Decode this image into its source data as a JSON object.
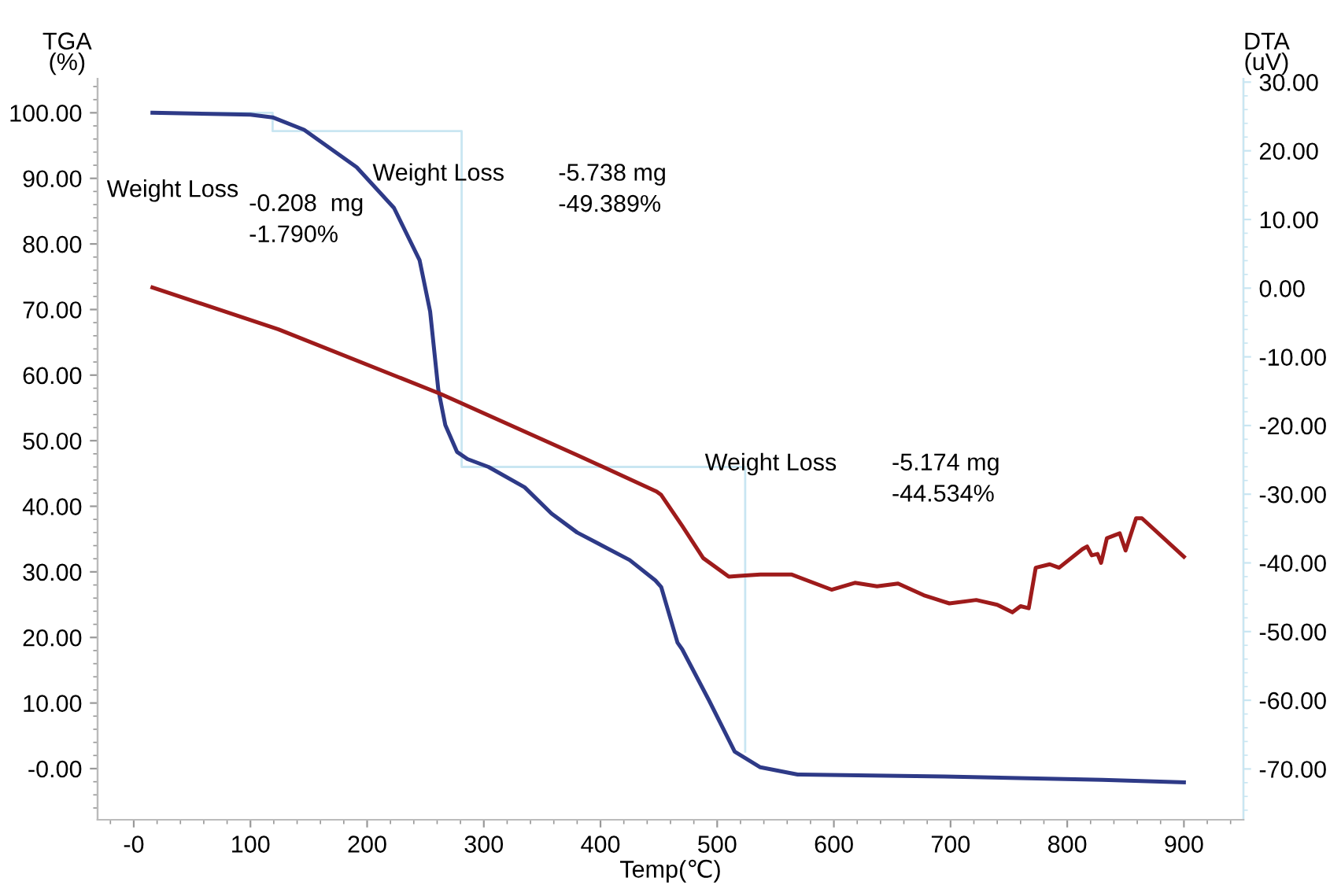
{
  "chart_data": {
    "type": "line",
    "xlabel": "Temp(℃)",
    "ylabel": "TGA\n(%)",
    "y2label": "DTA\n(uV)",
    "xlim": [
      -31,
      951
    ],
    "xticks": [
      {
        "value": 0,
        "label": "-0"
      },
      100,
      200,
      300,
      400,
      500,
      600,
      700,
      800,
      900
    ],
    "ylim": [
      -7.8,
      105.2
    ],
    "yticks": [
      {
        "value": 0,
        "label": "-0.00"
      },
      {
        "value": 10,
        "label": "10.00"
      },
      {
        "value": 20,
        "label": "20.00"
      },
      {
        "value": 30,
        "label": "30.00"
      },
      {
        "value": 40,
        "label": "40.00"
      },
      {
        "value": 50,
        "label": "50.00"
      },
      {
        "value": 60,
        "label": "60.00"
      },
      {
        "value": 70,
        "label": "70.00"
      },
      {
        "value": 80,
        "label": "80.00"
      },
      {
        "value": 90,
        "label": "90.00"
      },
      {
        "value": 100,
        "label": "100.00"
      }
    ],
    "y2lim": [
      -77.4,
      30.5
    ],
    "y2ticks": [
      {
        "value": -70,
        "label": "-70.00"
      },
      {
        "value": -60,
        "label": "-60.00"
      },
      {
        "value": -50,
        "label": "-50.00"
      },
      {
        "value": -40,
        "label": "-40.00"
      },
      {
        "value": -30,
        "label": "-30.00"
      },
      {
        "value": -20,
        "label": "-20.00"
      },
      {
        "value": -10,
        "label": "-10.00"
      },
      {
        "value": 0,
        "label": "0.00"
      },
      {
        "value": 10,
        "label": "10.00"
      },
      {
        "value": 20,
        "label": "20.00"
      },
      {
        "value": 30,
        "label": "30.00"
      }
    ],
    "grid": false,
    "legend": false,
    "marker": "none",
    "line_style": "solid",
    "series": [
      {
        "color": "#c9e6f2",
        "x": [
          16,
          119,
          119,
          281,
          281,
          524,
          524
        ],
        "values": [
          100,
          100,
          97.2,
          97.2,
          46,
          46,
          2.6
        ]
      },
      {
        "color": "#2e3a87",
        "x": [
          16,
          100,
          119,
          146,
          191,
          223,
          245,
          254,
          261,
          267,
          277,
          286,
          304,
          335,
          358,
          380,
          425,
          447,
          452,
          466,
          470,
          493,
          515,
          537,
          569,
          695,
          830,
          900
        ],
        "values": [
          100,
          99.7,
          99.3,
          97.4,
          91.7,
          85.5,
          77.5,
          69.7,
          57.8,
          52.4,
          48.3,
          47.2,
          46,
          42.9,
          38.9,
          36,
          31.8,
          28.7,
          27.7,
          19.2,
          18.2,
          10.4,
          2.6,
          0.2,
          -0.9,
          -1.2,
          -1.7,
          -2.1
        ]
      },
      {
        "color": "#9e1b1b",
        "axis": "y2",
        "x": [
          16,
          124,
          263,
          380,
          448,
          452,
          470,
          488,
          510,
          519,
          537,
          564,
          598,
          618,
          637,
          655,
          677,
          699,
          722,
          740,
          753,
          760,
          767,
          773,
          785,
          793,
          813,
          817,
          821,
          826,
          829,
          834,
          845,
          850,
          859,
          864,
          900
        ],
        "values": [
          0.1,
          -6,
          -15.4,
          -24.3,
          -29.6,
          -30.1,
          -34.6,
          -39.3,
          -42,
          -41.9,
          -41.7,
          -41.7,
          -43.9,
          -42.9,
          -43.4,
          -43,
          -44.7,
          -45.9,
          -45.4,
          -46.1,
          -47.2,
          -46.3,
          -46.6,
          -40.7,
          -40.2,
          -40.7,
          -38,
          -37.6,
          -38.9,
          -38.7,
          -40,
          -36.4,
          -35.7,
          -38.2,
          -33.5,
          -33.5,
          -39.1
        ]
      }
    ],
    "annotations": [
      "Weight Loss",
      "-0.208  mg\n-1.790%",
      "Weight Loss",
      "-5.738 mg\n-49.389%",
      "Weight Loss",
      "-5.174 mg\n-44.534%"
    ]
  }
}
